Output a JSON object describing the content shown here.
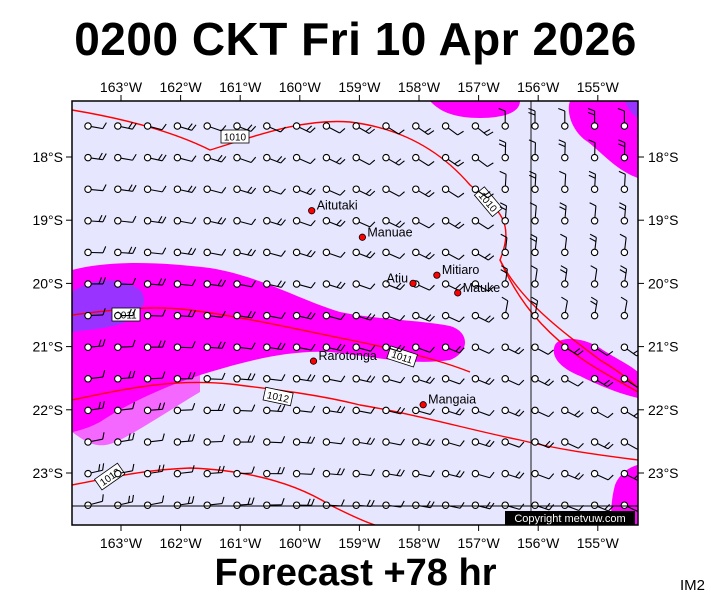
{
  "title": "0200 CKT Fri 10 Apr 2026",
  "subtitle": "Forecast +78 hr",
  "corner_code": "IM2",
  "copyright": "Copyright metvuw.com",
  "colors": {
    "ocean": "#e6e6ff",
    "precip_light": "#ff00ff",
    "precip_heavy": "#9933ff",
    "isobar": "#ff0000",
    "island": "#ff0000"
  },
  "lon_labels": [
    "163°W",
    "162°W",
    "161°W",
    "160°W",
    "159°W",
    "158°W",
    "157°W",
    "156°W",
    "155°W"
  ],
  "lat_labels": [
    "18°S",
    "19°S",
    "20°S",
    "21°S",
    "22°S",
    "23°S"
  ],
  "islands": [
    {
      "name": "Aitutaki",
      "lon": -159.8,
      "lat": -18.85
    },
    {
      "name": "Manuae",
      "lon": -158.95,
      "lat": -19.27
    },
    {
      "name": "Mitiaro",
      "lon": -157.7,
      "lat": -19.87
    },
    {
      "name": "Atiu",
      "lon": -158.1,
      "lat": -20.0
    },
    {
      "name": "Mauke",
      "lon": -157.35,
      "lat": -20.15
    },
    {
      "name": "Rarotonga",
      "lon": -159.77,
      "lat": -21.23
    },
    {
      "name": "Mangaia",
      "lon": -157.93,
      "lat": -21.92
    }
  ],
  "isobar_labels": [
    "1010",
    "1010",
    "1011",
    "1011",
    "1012",
    "1013"
  ]
}
